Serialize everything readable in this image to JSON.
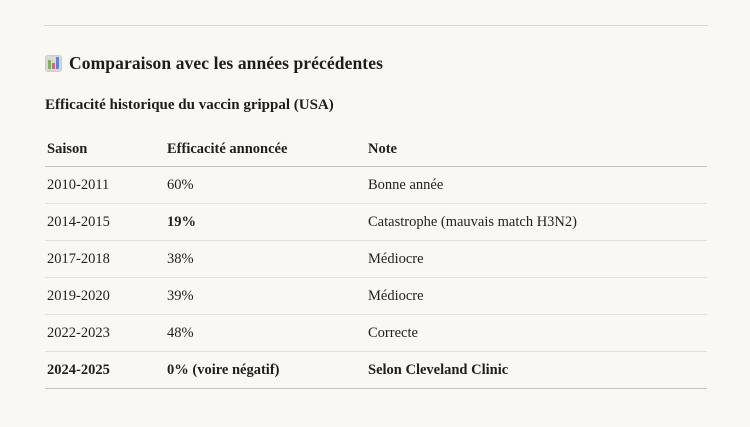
{
  "page": {
    "background_color": "#F9F8F2",
    "text_color": "#1E1D1A",
    "divider_color": "#DAD8D2"
  },
  "header": {
    "icon": "bar-chart-emoji",
    "icon_colors": {
      "green": "#6FBE45",
      "pink": "#EF568D",
      "blue": "#4C8CF0",
      "background": "#DBD9D5"
    },
    "title": "Comparaison avec les années précédentes"
  },
  "section": {
    "subtitle": "Efficacité historique du vaccin grippal (USA)"
  },
  "table": {
    "columns": [
      "Saison",
      "Efficacité annoncée",
      "Note"
    ],
    "rows": [
      {
        "season": "2010-2011",
        "efficacy": "60%",
        "note": "Bonne année"
      },
      {
        "season": "2014-2015",
        "efficacy": "19%",
        "note": "Catastrophe (mauvais match H3N2)"
      },
      {
        "season": "2017-2018",
        "efficacy": "38%",
        "note": "Médiocre"
      },
      {
        "season": "2019-2020",
        "efficacy": "39%",
        "note": "Médiocre"
      },
      {
        "season": "2022-2023",
        "efficacy": "48%",
        "note": "Correcte"
      },
      {
        "season": "2024-2025",
        "efficacy": "0% (voire négatif)",
        "note": "Selon Cleveland Clinic"
      }
    ],
    "emphasis": {
      "bold_efficacy_row_index": 1,
      "bold_full_row_index": 5
    }
  }
}
